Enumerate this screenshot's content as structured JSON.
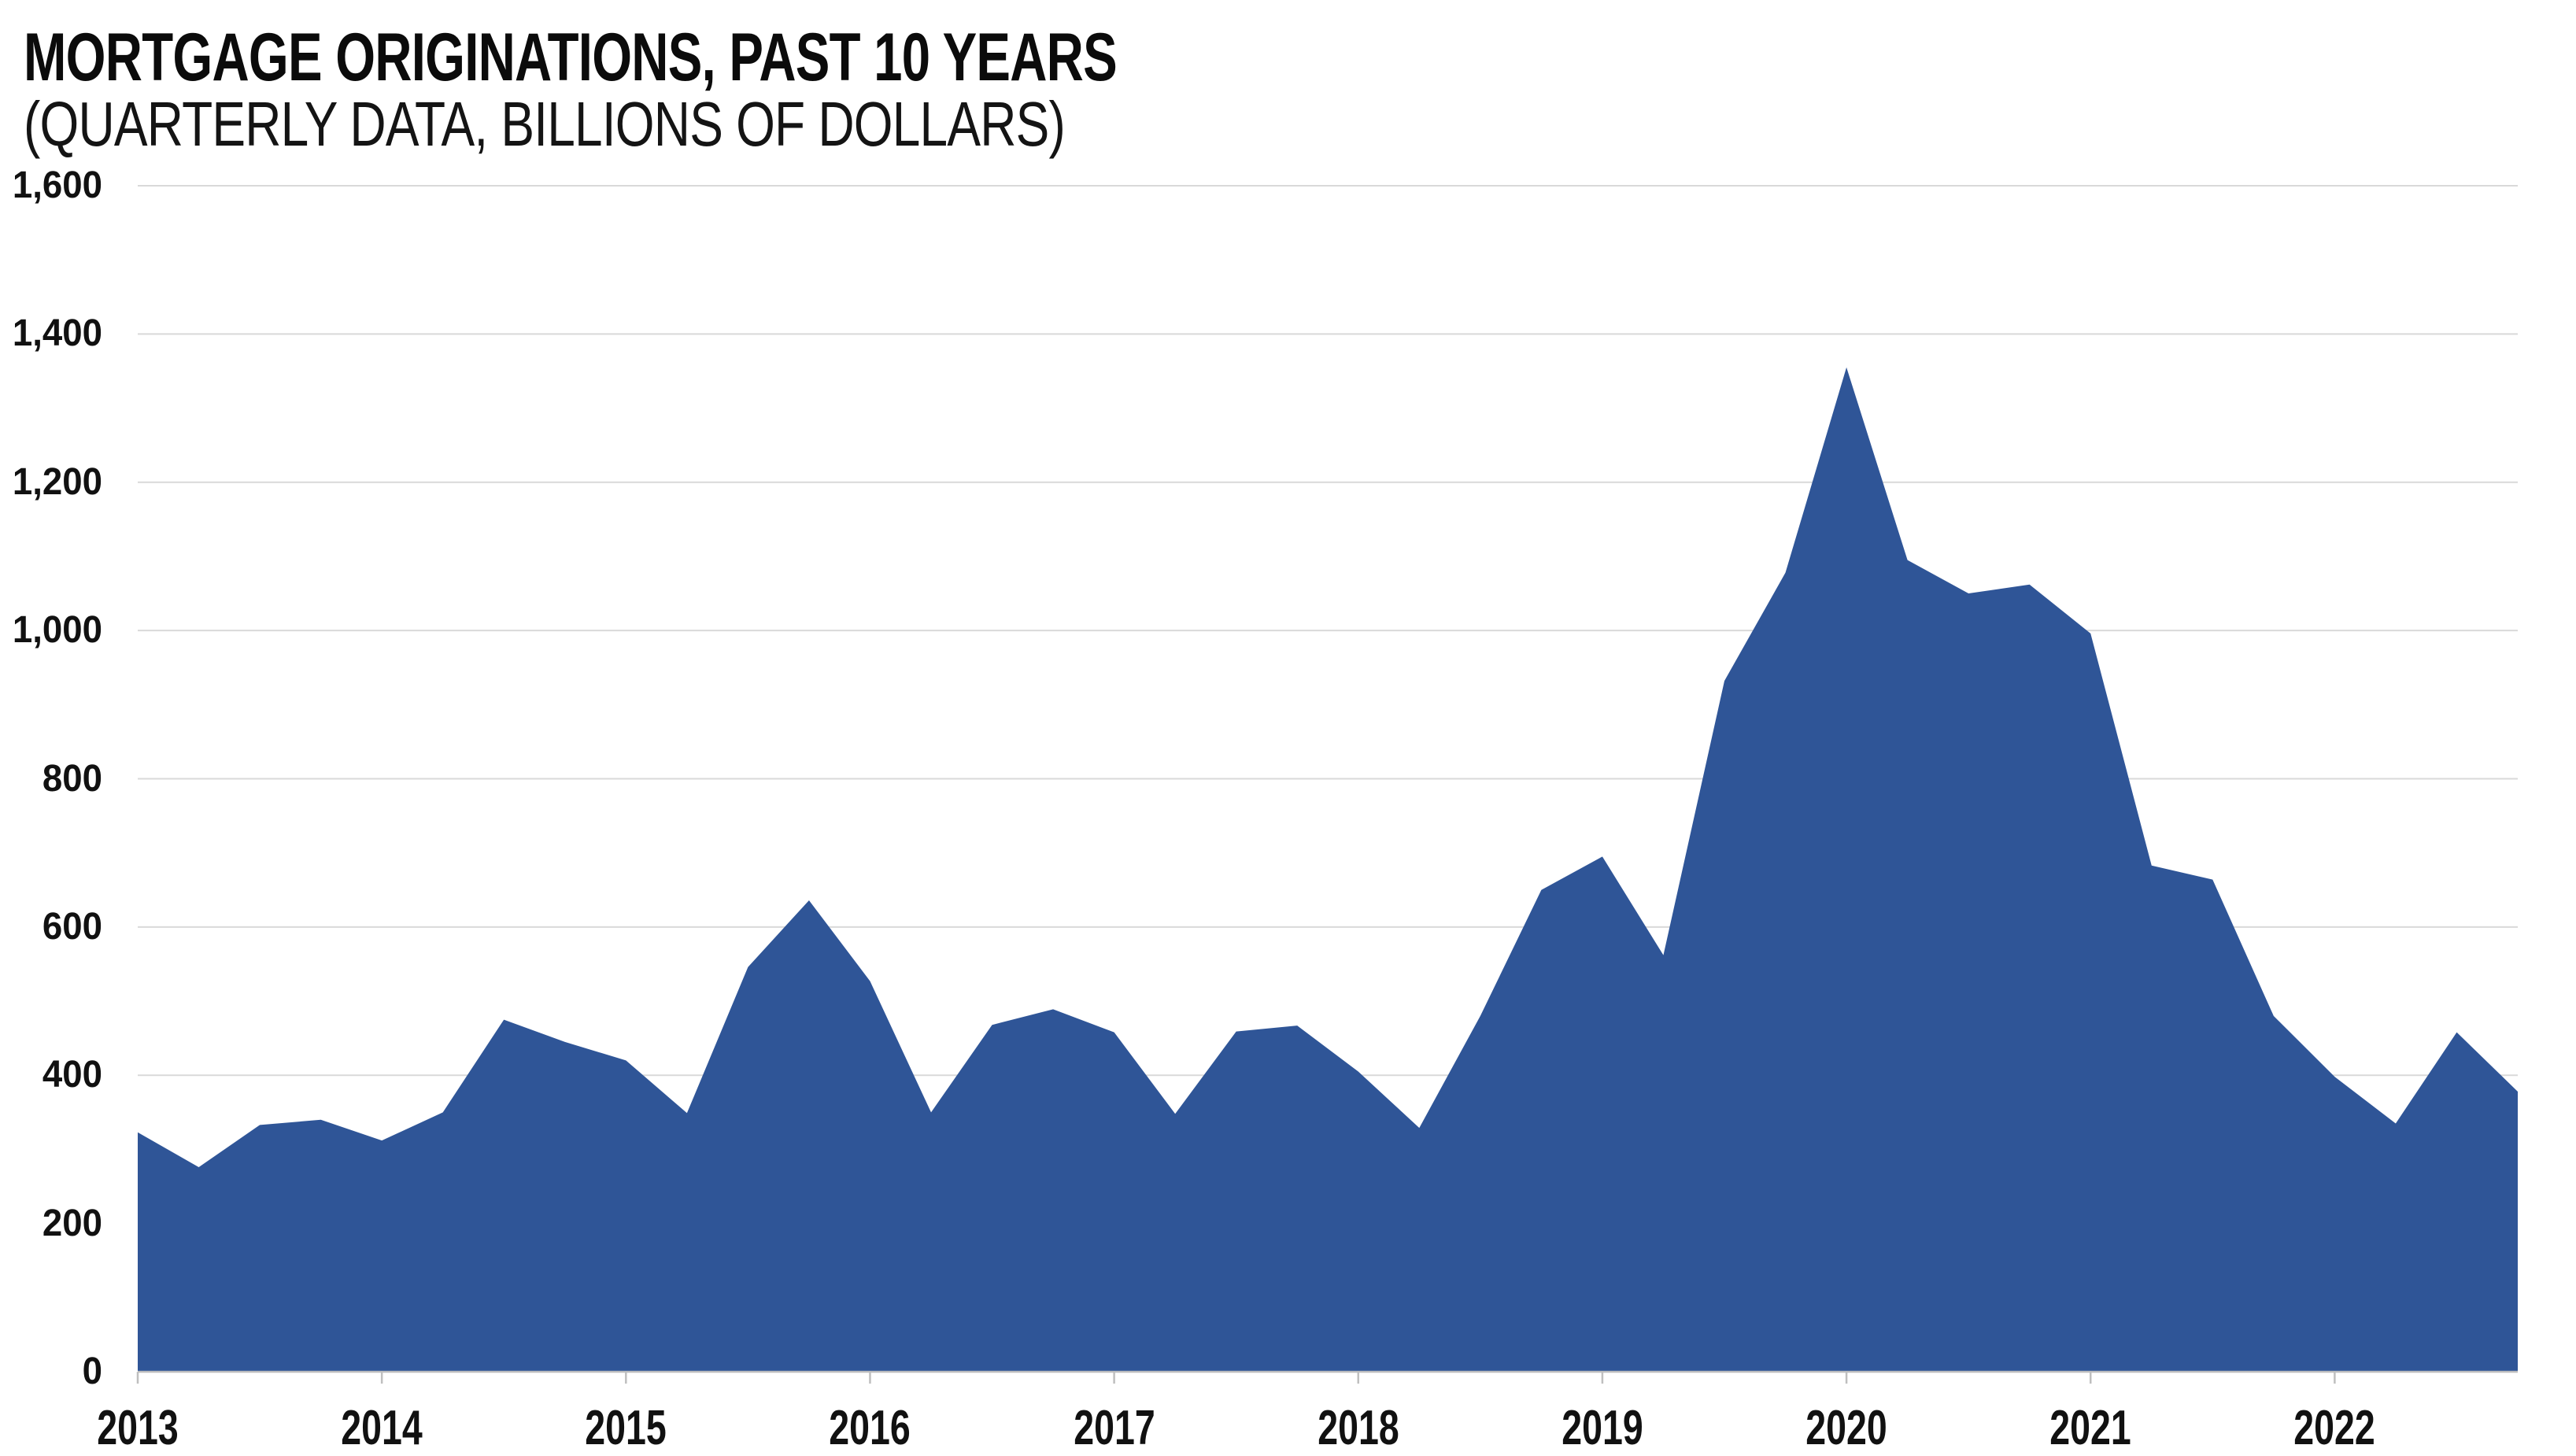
{
  "header": {
    "title": "MORTGAGE ORIGINATIONS, PAST 10 YEARS",
    "subtitle": "(QUARTERLY DATA, BILLIONS OF DOLLARS)"
  },
  "chart_data": {
    "type": "area",
    "title": "MORTGAGE ORIGINATIONS, PAST 10 YEARS",
    "subtitle": "(QUARTERLY DATA, BILLIONS OF DOLLARS)",
    "frequency": "quarterly",
    "value_unit": "billions of dollars",
    "categories": [
      "2013 Q1",
      "2013 Q2",
      "2013 Q3",
      "2013 Q4",
      "2014 Q1",
      "2014 Q2",
      "2014 Q3",
      "2014 Q4",
      "2015 Q1",
      "2015 Q2",
      "2015 Q3",
      "2015 Q4",
      "2016 Q1",
      "2016 Q2",
      "2016 Q3",
      "2016 Q4",
      "2017 Q1",
      "2017 Q2",
      "2017 Q3",
      "2017 Q4",
      "2018 Q1",
      "2018 Q2",
      "2018 Q3",
      "2018 Q4",
      "2019 Q1",
      "2019 Q2",
      "2019 Q3",
      "2019 Q4",
      "2020 Q1",
      "2020 Q2",
      "2020 Q3",
      "2020 Q4",
      "2021 Q1",
      "2021 Q2",
      "2021 Q3",
      "2021 Q4",
      "2022 Q1",
      "2022 Q2",
      "2022 Q3",
      "2022 Q4"
    ],
    "series": [
      {
        "name": "Mortgage originations",
        "values": [
          323,
          276,
          333,
          340,
          312,
          350,
          475,
          445,
          420,
          349,
          546,
          636,
          527,
          350,
          468,
          489,
          458,
          348,
          459,
          467,
          405,
          329,
          480,
          650,
          695,
          562,
          932,
          1078,
          1355,
          1095,
          1050,
          1062,
          996,
          683,
          664,
          480,
          398,
          335,
          458,
          378
        ]
      }
    ],
    "x_tick_labels": [
      "2013",
      "2014",
      "2015",
      "2016",
      "2017",
      "2018",
      "2019",
      "2020",
      "2021",
      "2022"
    ],
    "x_ticks_every_n_points": 4,
    "y_ticks": [
      0,
      200,
      400,
      600,
      800,
      1000,
      1200,
      1400,
      1600
    ],
    "y_tick_labels": [
      "0",
      "200",
      "400",
      "600",
      "800",
      "1,000",
      "1,200",
      "1,400",
      "1,600"
    ],
    "ylim": [
      0,
      1600
    ],
    "grid": "horizontal",
    "legend_position": "none",
    "colors": {
      "area_fill": "#2F5597",
      "gridline": "#D9D9D9",
      "axis_line": "#BFBFBF",
      "text": "#111111"
    }
  }
}
